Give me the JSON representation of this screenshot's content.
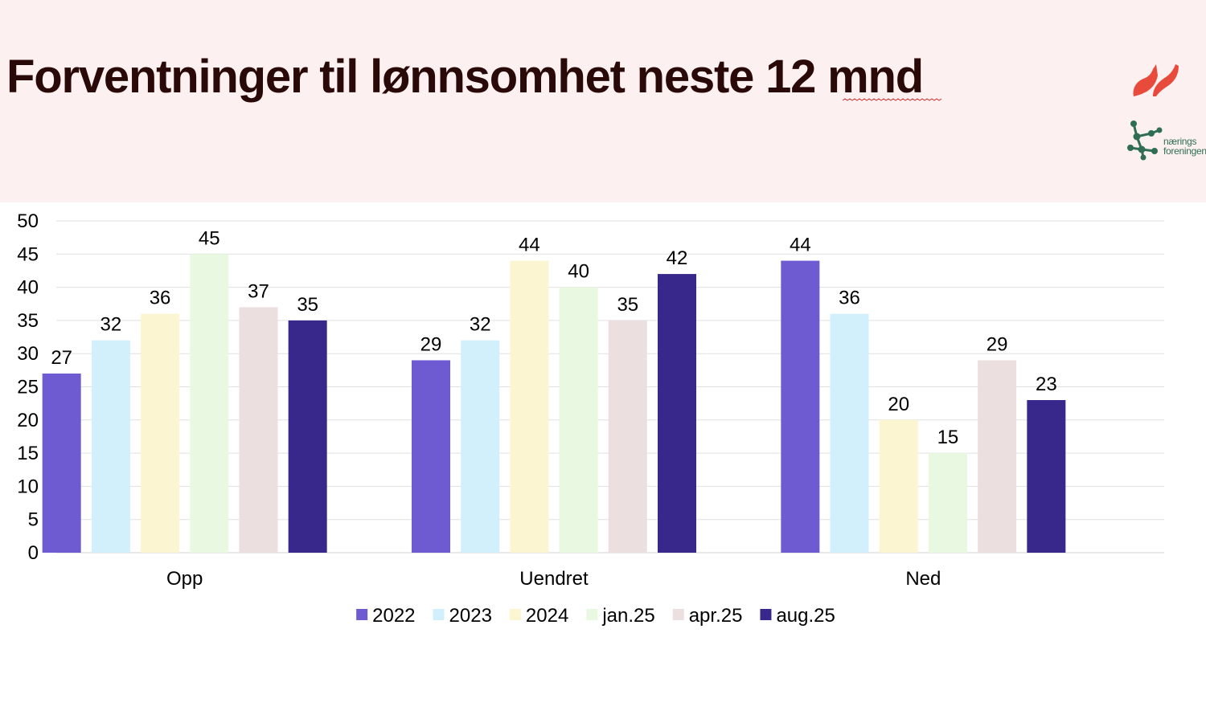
{
  "slide": {
    "title": "Forventninger til lønnsomhet neste 12 mnd",
    "logo_text_line1": "nærings",
    "logo_text_line2": "foreningen",
    "header_color": "#fdf0f0",
    "title_color": "#2a0a08"
  },
  "chart_data": {
    "type": "bar",
    "categories": [
      "Opp",
      "Uendret",
      "Ned"
    ],
    "series": [
      {
        "name": "2022",
        "color": "#6e5bd2",
        "values": [
          27,
          29,
          44
        ]
      },
      {
        "name": "2023",
        "color": "#d1f0fc",
        "values": [
          32,
          32,
          36
        ]
      },
      {
        "name": "2024",
        "color": "#fbf6d1",
        "values": [
          36,
          44,
          20
        ]
      },
      {
        "name": "jan.25",
        "color": "#e9f8e0",
        "values": [
          45,
          40,
          15
        ]
      },
      {
        "name": "apr.25",
        "color": "#ebdfdf",
        "values": [
          37,
          35,
          29
        ]
      },
      {
        "name": "aug.25",
        "color": "#38288c",
        "values": [
          35,
          42,
          23
        ]
      }
    ],
    "ylim": [
      0,
      50
    ],
    "yticks": [
      "0",
      "5",
      "10",
      "15",
      "20",
      "25",
      "30",
      "35",
      "40",
      "45",
      "50"
    ],
    "grid": true,
    "data_labels": true,
    "legend_position": "bottom"
  }
}
